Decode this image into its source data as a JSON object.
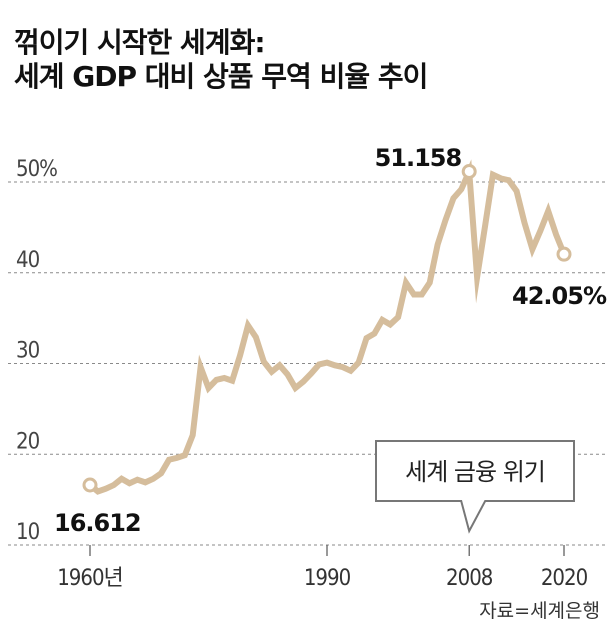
{
  "title": {
    "line1": "꺾이기 시작한 세계화:",
    "line2": "세계 GDP 대비 상품 무역 비율 추이"
  },
  "source": "자료=세계은행",
  "chart_data": {
    "type": "line",
    "ylim": [
      10,
      53
    ],
    "xlim": [
      1960,
      2020
    ],
    "y_ticks": [
      {
        "value": 50,
        "label": "50%"
      },
      {
        "value": 40,
        "label": "40"
      },
      {
        "value": 30,
        "label": "30"
      },
      {
        "value": 20,
        "label": "20"
      },
      {
        "value": 10,
        "label": "10"
      }
    ],
    "x_ticks": [
      {
        "value": 1960,
        "label": "1960년"
      },
      {
        "value": 1990,
        "label": "1990"
      },
      {
        "value": 2008,
        "label": "2008"
      },
      {
        "value": 2020,
        "label": "2020"
      }
    ],
    "grid": "horizontal dashed",
    "line_color": "#d5bd9c",
    "series": [
      {
        "x": [
          1960,
          1961,
          1962,
          1963,
          1964,
          1965,
          1966,
          1967,
          1968,
          1969,
          1970,
          1971,
          1972,
          1973,
          1974,
          1975,
          1976,
          1977,
          1978,
          1979,
          1980,
          1981,
          1982,
          1983,
          1984,
          1985,
          1986,
          1987,
          1988,
          1989,
          1990,
          1991,
          1992,
          1993,
          1994,
          1995,
          1996,
          1997,
          1998,
          1999,
          2000,
          2001,
          2002,
          2003,
          2004,
          2005,
          2006,
          2007,
          2008,
          2009,
          2010,
          2011,
          2012,
          2013,
          2014,
          2015,
          2016,
          2017,
          2018,
          2019,
          2020
        ],
        "values": [
          16.612,
          15.9,
          16.2,
          16.6,
          17.3,
          16.8,
          17.2,
          16.9,
          17.3,
          17.9,
          19.4,
          19.6,
          19.9,
          22.1,
          29.6,
          27.3,
          28.2,
          28.4,
          28.1,
          30.9,
          34.2,
          32.9,
          30.2,
          29.1,
          29.8,
          28.8,
          27.3,
          28.0,
          28.9,
          29.9,
          30.1,
          29.8,
          29.6,
          29.2,
          30.1,
          32.8,
          33.3,
          34.8,
          34.3,
          35.1,
          38.9,
          37.6,
          37.6,
          38.9,
          43.1,
          45.8,
          48.2,
          49.2,
          51.158,
          39.5,
          45.1,
          50.8,
          50.4,
          50.2,
          49.0,
          45.5,
          42.6,
          44.6,
          46.8,
          44.2,
          42.05
        ]
      }
    ],
    "annotations": {
      "start": {
        "label": "16.612",
        "x": 1960,
        "y": 16.612
      },
      "peak": {
        "label": "51.158",
        "x": 2008,
        "y": 51.158
      },
      "end": {
        "label": "42.05%",
        "x": 2020,
        "y": 42.05
      },
      "callout": {
        "label": "세계 금융 위기",
        "x": 2008
      }
    }
  }
}
